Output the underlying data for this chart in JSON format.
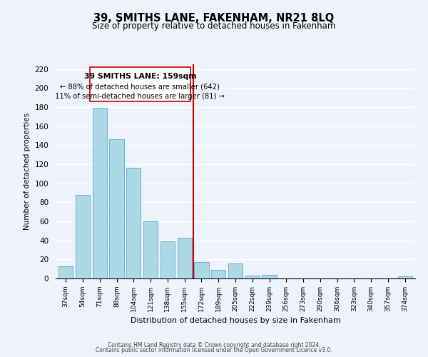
{
  "title": "39, SMITHS LANE, FAKENHAM, NR21 8LQ",
  "subtitle": "Size of property relative to detached houses in Fakenham",
  "xlabel": "Distribution of detached houses by size in Fakenham",
  "ylabel": "Number of detached properties",
  "bar_labels": [
    "37sqm",
    "54sqm",
    "71sqm",
    "88sqm",
    "104sqm",
    "121sqm",
    "138sqm",
    "155sqm",
    "172sqm",
    "189sqm",
    "205sqm",
    "222sqm",
    "239sqm",
    "256sqm",
    "273sqm",
    "290sqm",
    "306sqm",
    "323sqm",
    "340sqm",
    "357sqm",
    "374sqm"
  ],
  "bar_values": [
    13,
    88,
    179,
    146,
    116,
    60,
    39,
    43,
    17,
    9,
    16,
    3,
    4,
    0,
    0,
    0,
    0,
    0,
    0,
    0,
    2
  ],
  "bar_color": "#add8e6",
  "bar_edgecolor": "#6ab0d4",
  "property_line_label": "39 SMITHS LANE: 159sqm",
  "annotation_line1": "← 88% of detached houses are smaller (642)",
  "annotation_line2": "11% of semi-detached houses are larger (81) →",
  "vline_color": "#cc0000",
  "ylim": [
    0,
    225
  ],
  "yticks": [
    0,
    20,
    40,
    60,
    80,
    100,
    120,
    140,
    160,
    180,
    200,
    220
  ],
  "background_color": "#eef2fa",
  "plot_bg_color": "#eef2fa",
  "footer1": "Contains HM Land Registry data © Crown copyright and database right 2024.",
  "footer2": "Contains public sector information licensed under the Open Government Licence v3.0."
}
